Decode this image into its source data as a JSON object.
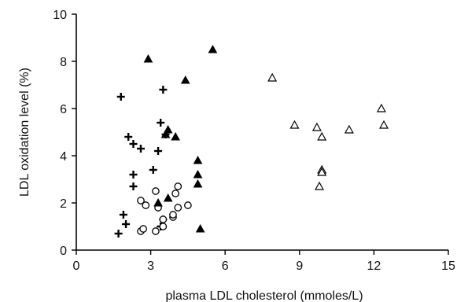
{
  "chart_data": {
    "type": "scatter",
    "xlabel": "plasma LDL cholesterol (mmoles/L)",
    "ylabel": "LDL oxidation level (%)",
    "xlim": [
      0,
      15
    ],
    "ylim": [
      0,
      10
    ],
    "xticks": [
      0,
      3,
      6,
      9,
      12,
      15
    ],
    "yticks": [
      0,
      2,
      4,
      6,
      8,
      10
    ],
    "grid": false,
    "legend": "none",
    "series": [
      {
        "marker": "plus",
        "color": "#000000",
        "points": [
          [
            1.7,
            0.7
          ],
          [
            2.0,
            1.1
          ],
          [
            1.9,
            1.5
          ],
          [
            2.3,
            2.7
          ],
          [
            2.3,
            3.2
          ],
          [
            2.1,
            4.8
          ],
          [
            2.3,
            4.5
          ],
          [
            2.6,
            4.3
          ],
          [
            1.8,
            6.5
          ],
          [
            3.1,
            3.4
          ],
          [
            3.3,
            4.2
          ],
          [
            3.4,
            5.4
          ],
          [
            3.5,
            6.8
          ],
          [
            3.6,
            4.9
          ],
          [
            3.4,
            1.0
          ],
          [
            3.5,
            1.3
          ]
        ]
      },
      {
        "marker": "open-circle",
        "color": "#000000",
        "points": [
          [
            2.6,
            0.8
          ],
          [
            2.7,
            0.9
          ],
          [
            2.6,
            2.1
          ],
          [
            2.8,
            1.9
          ],
          [
            3.2,
            0.8
          ],
          [
            3.3,
            1.8
          ],
          [
            3.2,
            2.5
          ],
          [
            3.5,
            1.3
          ],
          [
            3.5,
            1.0
          ],
          [
            3.9,
            1.4
          ],
          [
            3.9,
            1.5
          ],
          [
            4.1,
            1.8
          ],
          [
            4.0,
            2.4
          ],
          [
            4.1,
            2.7
          ],
          [
            4.5,
            1.9
          ]
        ]
      },
      {
        "marker": "filled-triangle",
        "color": "#000000",
        "points": [
          [
            2.9,
            8.1
          ],
          [
            4.4,
            7.2
          ],
          [
            5.5,
            8.5
          ],
          [
            3.7,
            5.1
          ],
          [
            3.6,
            4.9
          ],
          [
            4.0,
            4.8
          ],
          [
            4.9,
            3.8
          ],
          [
            4.9,
            3.2
          ],
          [
            4.9,
            2.8
          ],
          [
            3.7,
            2.2
          ],
          [
            3.3,
            2.0
          ],
          [
            5.0,
            0.9
          ]
        ]
      },
      {
        "marker": "open-triangle",
        "color": "#000000",
        "points": [
          [
            7.9,
            7.3
          ],
          [
            8.8,
            5.3
          ],
          [
            9.7,
            5.2
          ],
          [
            9.9,
            4.8
          ],
          [
            9.9,
            3.4
          ],
          [
            9.9,
            3.3
          ],
          [
            9.8,
            2.7
          ],
          [
            11.0,
            5.1
          ],
          [
            12.3,
            6.0
          ],
          [
            12.4,
            5.3
          ]
        ]
      }
    ]
  }
}
